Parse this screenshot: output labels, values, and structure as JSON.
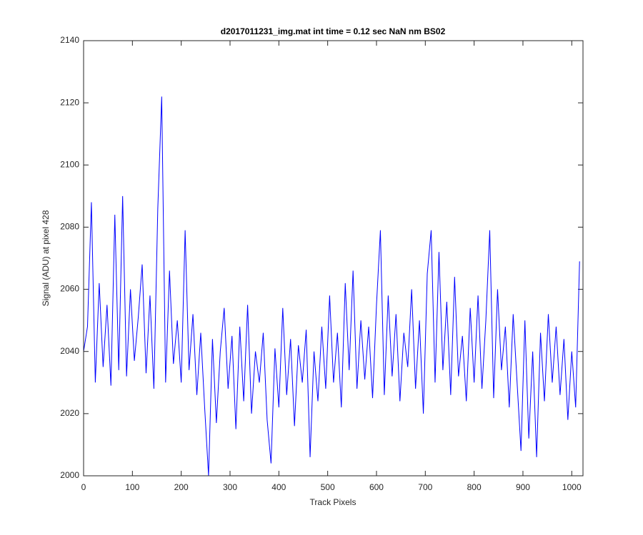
{
  "chart_data": {
    "type": "line",
    "title": "d2017011231_img.mat int time = 0.12 sec  NaN nm BS02",
    "x_label": "Track Pixels",
    "y_label": "Signal (ADU) at pixel 428",
    "x": [
      0,
      8,
      16,
      24,
      32,
      40,
      48,
      56,
      64,
      72,
      80,
      88,
      96,
      104,
      112,
      120,
      128,
      136,
      144,
      152,
      160,
      168,
      176,
      184,
      192,
      200,
      208,
      216,
      224,
      232,
      240,
      248,
      256,
      264,
      272,
      280,
      288,
      296,
      304,
      312,
      320,
      328,
      336,
      344,
      352,
      360,
      368,
      376,
      384,
      392,
      400,
      408,
      416,
      424,
      432,
      440,
      448,
      456,
      464,
      472,
      480,
      488,
      496,
      504,
      512,
      520,
      528,
      536,
      544,
      552,
      560,
      568,
      576,
      584,
      592,
      600,
      608,
      616,
      624,
      632,
      640,
      648,
      656,
      664,
      672,
      680,
      688,
      696,
      704,
      712,
      720,
      728,
      736,
      744,
      752,
      760,
      768,
      776,
      784,
      792,
      800,
      808,
      816,
      824,
      832,
      840,
      848,
      856,
      864,
      872,
      880,
      888,
      896,
      904,
      912,
      920,
      928,
      936,
      944,
      952,
      960,
      968,
      976,
      984,
      992,
      1000,
      1008,
      1016
    ],
    "series": [
      {
        "color": "#0000ff",
        "values": [
          2040,
          2048,
          2088,
          2030,
          2062,
          2035,
          2055,
          2029,
          2084,
          2034,
          2090,
          2032,
          2060,
          2037,
          2051,
          2068,
          2033,
          2058,
          2028,
          2086,
          2122,
          2030,
          2066,
          2036,
          2050,
          2030,
          2079,
          2034,
          2052,
          2026,
          2046,
          2022,
          2000,
          2044,
          2017,
          2040,
          2054,
          2028,
          2045,
          2015,
          2048,
          2024,
          2055,
          2020,
          2040,
          2030,
          2046,
          2018,
          2004,
          2041,
          2022,
          2054,
          2026,
          2044,
          2016,
          2042,
          2030,
          2047,
          2006,
          2040,
          2024,
          2048,
          2028,
          2058,
          2030,
          2046,
          2022,
          2062,
          2034,
          2066,
          2028,
          2050,
          2031,
          2048,
          2025,
          2055,
          2079,
          2026,
          2058,
          2032,
          2052,
          2024,
          2046,
          2035,
          2060,
          2028,
          2050,
          2020,
          2065,
          2079,
          2030,
          2072,
          2034,
          2056,
          2026,
          2064,
          2032,
          2045,
          2024,
          2054,
          2030,
          2058,
          2028,
          2050,
          2079,
          2025,
          2060,
          2034,
          2048,
          2022,
          2052,
          2030,
          2008,
          2050,
          2012,
          2040,
          2006,
          2046,
          2024,
          2052,
          2030,
          2048,
          2026,
          2044,
          2018,
          2040,
          2022,
          2069
        ]
      }
    ],
    "xlim": [
      0,
      1023
    ],
    "ylim": [
      2000,
      2140
    ],
    "xticks": [
      0,
      100,
      200,
      300,
      400,
      500,
      600,
      700,
      800,
      900,
      1000
    ],
    "yticks": [
      2000,
      2020,
      2040,
      2060,
      2080,
      2100,
      2120,
      2140
    ]
  }
}
